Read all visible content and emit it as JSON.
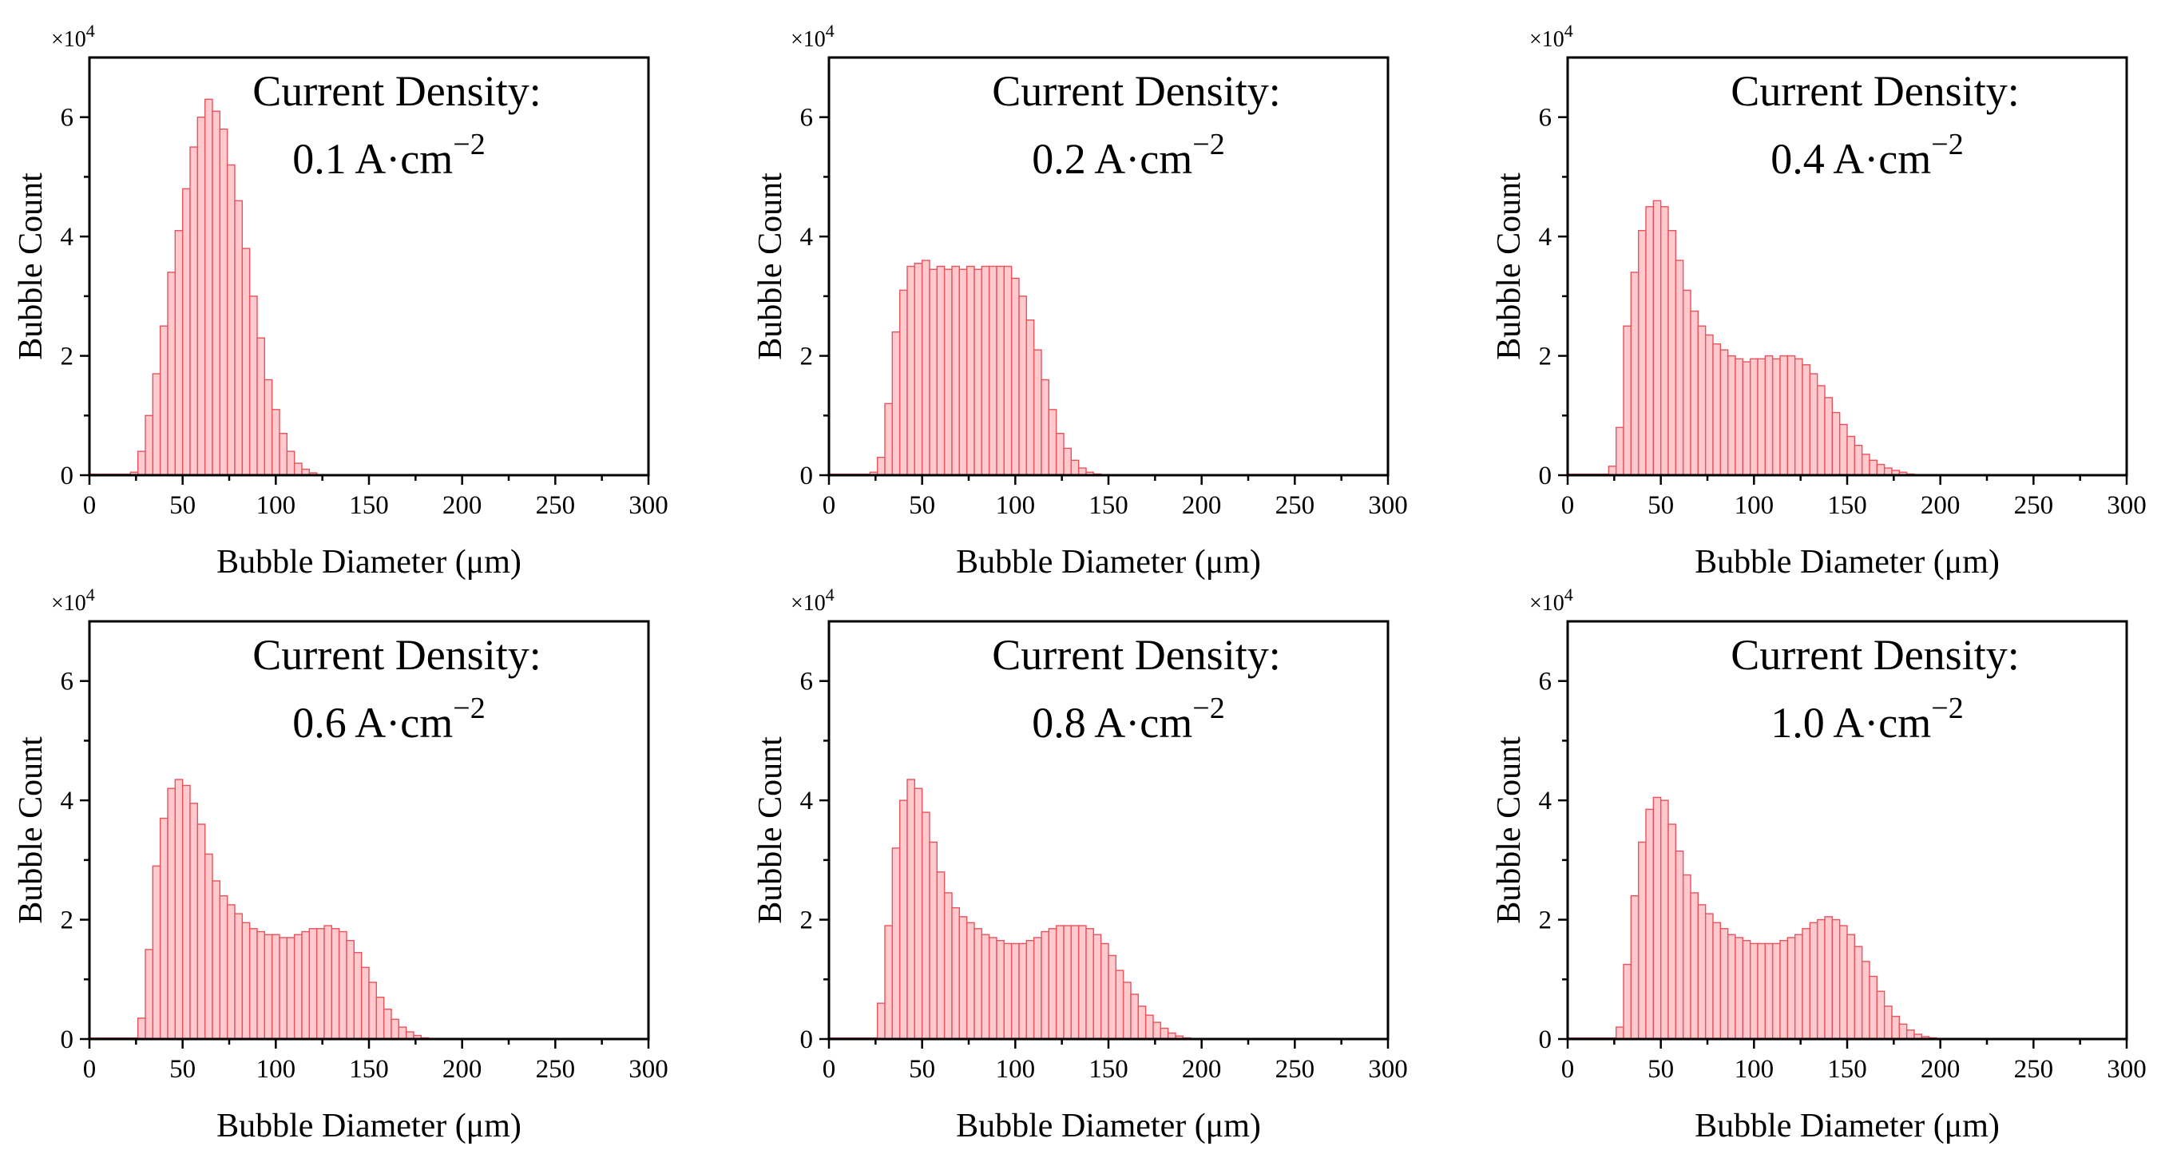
{
  "figure": {
    "bar_fill": "#ffc9cd",
    "bar_edge": "#e8535c",
    "axis_color": "#000000"
  },
  "chart_data": [
    {
      "type": "bar",
      "title": "Current Density:",
      "subtitle": "0.1 A·cm",
      "subtitle_exponent": "−2",
      "xlabel": "Bubble Diameter (μm)",
      "ylabel": "Bubble Count",
      "y_multiplier": "×10",
      "y_multiplier_exponent": "4",
      "xlim": [
        0,
        300
      ],
      "ylim": [
        0,
        7
      ],
      "xticks": [
        0,
        50,
        100,
        150,
        200,
        250,
        300
      ],
      "yticks": [
        0,
        2,
        4,
        6
      ],
      "bin_width": 4,
      "bin_start": 22,
      "values": [
        0.05,
        0.4,
        1.0,
        1.7,
        2.5,
        3.4,
        4.1,
        4.8,
        5.5,
        6.0,
        6.3,
        6.1,
        5.8,
        5.2,
        4.6,
        3.8,
        3.0,
        2.3,
        1.6,
        1.1,
        0.7,
        0.4,
        0.2,
        0.1,
        0.04
      ]
    },
    {
      "type": "bar",
      "title": "Current Density:",
      "subtitle": "0.2 A·cm",
      "subtitle_exponent": "−2",
      "xlabel": "Bubble Diameter (μm)",
      "ylabel": "Bubble Count",
      "y_multiplier": "×10",
      "y_multiplier_exponent": "4",
      "xlim": [
        0,
        300
      ],
      "ylim": [
        0,
        7
      ],
      "xticks": [
        0,
        50,
        100,
        150,
        200,
        250,
        300
      ],
      "yticks": [
        0,
        2,
        4,
        6
      ],
      "bin_width": 4,
      "bin_start": 22,
      "values": [
        0.05,
        0.3,
        1.2,
        2.4,
        3.1,
        3.5,
        3.55,
        3.6,
        3.45,
        3.5,
        3.45,
        3.5,
        3.45,
        3.5,
        3.45,
        3.5,
        3.5,
        3.5,
        3.5,
        3.3,
        3.0,
        2.6,
        2.1,
        1.6,
        1.1,
        0.7,
        0.45,
        0.25,
        0.12,
        0.05,
        0.02
      ]
    },
    {
      "type": "bar",
      "title": "Current Density:",
      "subtitle": "0.4 A·cm",
      "subtitle_exponent": "−2",
      "xlabel": "Bubble Diameter (μm)",
      "ylabel": "Bubble Count",
      "y_multiplier": "×10",
      "y_multiplier_exponent": "4",
      "xlim": [
        0,
        300
      ],
      "ylim": [
        0,
        7
      ],
      "xticks": [
        0,
        50,
        100,
        150,
        200,
        250,
        300
      ],
      "yticks": [
        0,
        2,
        4,
        6
      ],
      "bin_width": 4,
      "bin_start": 22,
      "values": [
        0.15,
        0.8,
        2.5,
        3.4,
        4.1,
        4.5,
        4.6,
        4.5,
        4.1,
        3.6,
        3.1,
        2.75,
        2.5,
        2.35,
        2.2,
        2.1,
        2.0,
        1.95,
        1.9,
        1.95,
        1.95,
        2.0,
        1.95,
        2.0,
        2.0,
        1.95,
        1.85,
        1.7,
        1.5,
        1.3,
        1.05,
        0.85,
        0.65,
        0.5,
        0.35,
        0.25,
        0.18,
        0.12,
        0.08,
        0.05,
        0.02
      ]
    },
    {
      "type": "bar",
      "title": "Current Density:",
      "subtitle": "0.6 A·cm",
      "subtitle_exponent": "−2",
      "xlabel": "Bubble Diameter (μm)",
      "ylabel": "Bubble Count",
      "y_multiplier": "×10",
      "y_multiplier_exponent": "4",
      "xlim": [
        0,
        300
      ],
      "ylim": [
        0,
        7
      ],
      "xticks": [
        0,
        50,
        100,
        150,
        200,
        250,
        300
      ],
      "yticks": [
        0,
        2,
        4,
        6
      ],
      "bin_width": 4,
      "bin_start": 26,
      "values": [
        0.35,
        1.5,
        2.9,
        3.7,
        4.2,
        4.35,
        4.25,
        3.95,
        3.6,
        3.1,
        2.65,
        2.4,
        2.25,
        2.1,
        1.95,
        1.85,
        1.8,
        1.75,
        1.75,
        1.7,
        1.7,
        1.75,
        1.8,
        1.85,
        1.85,
        1.9,
        1.85,
        1.8,
        1.65,
        1.45,
        1.2,
        0.95,
        0.7,
        0.5,
        0.33,
        0.2,
        0.12,
        0.06,
        0.02
      ]
    },
    {
      "type": "bar",
      "title": "Current Density:",
      "subtitle": "0.8 A·cm",
      "subtitle_exponent": "−2",
      "xlabel": "Bubble Diameter (μm)",
      "ylabel": "Bubble Count",
      "y_multiplier": "×10",
      "y_multiplier_exponent": "4",
      "xlim": [
        0,
        300
      ],
      "ylim": [
        0,
        7
      ],
      "xticks": [
        0,
        50,
        100,
        150,
        200,
        250,
        300
      ],
      "yticks": [
        0,
        2,
        4,
        6
      ],
      "bin_width": 4,
      "bin_start": 26,
      "values": [
        0.6,
        1.9,
        3.2,
        4.0,
        4.35,
        4.2,
        3.8,
        3.3,
        2.8,
        2.45,
        2.2,
        2.05,
        1.95,
        1.85,
        1.75,
        1.7,
        1.65,
        1.6,
        1.6,
        1.6,
        1.65,
        1.7,
        1.8,
        1.85,
        1.9,
        1.9,
        1.9,
        1.9,
        1.85,
        1.75,
        1.6,
        1.4,
        1.15,
        0.95,
        0.75,
        0.55,
        0.4,
        0.28,
        0.18,
        0.1,
        0.05,
        0.02
      ]
    },
    {
      "type": "bar",
      "title": "Current Density:",
      "subtitle": "1.0 A·cm",
      "subtitle_exponent": "−2",
      "xlabel": "Bubble Diameter (μm)",
      "ylabel": "Bubble Count",
      "y_multiplier": "×10",
      "y_multiplier_exponent": "4",
      "xlim": [
        0,
        300
      ],
      "ylim": [
        0,
        7
      ],
      "xticks": [
        0,
        50,
        100,
        150,
        200,
        250,
        300
      ],
      "yticks": [
        0,
        2,
        4,
        6
      ],
      "bin_width": 4,
      "bin_start": 26,
      "values": [
        0.2,
        1.25,
        2.4,
        3.3,
        3.85,
        4.05,
        4.0,
        3.6,
        3.15,
        2.75,
        2.45,
        2.25,
        2.1,
        1.95,
        1.85,
        1.75,
        1.7,
        1.65,
        1.6,
        1.6,
        1.6,
        1.6,
        1.65,
        1.7,
        1.75,
        1.85,
        1.95,
        2.0,
        2.05,
        2.0,
        1.9,
        1.75,
        1.55,
        1.3,
        1.05,
        0.8,
        0.55,
        0.38,
        0.25,
        0.15,
        0.08,
        0.04,
        0.02
      ]
    }
  ]
}
